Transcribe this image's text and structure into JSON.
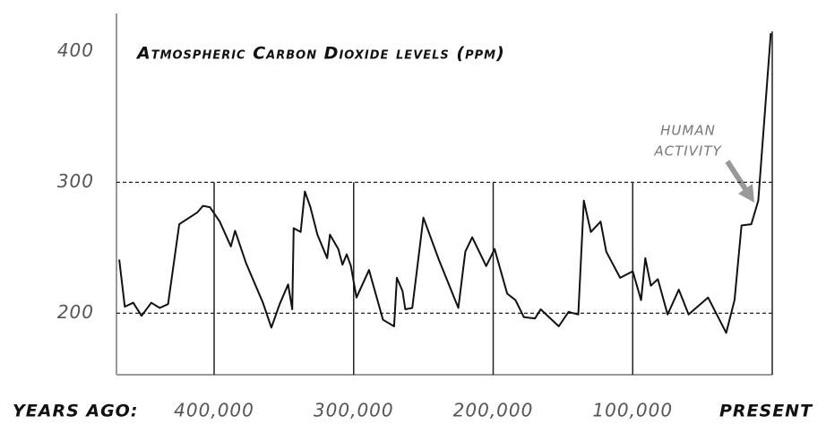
{
  "chart_data": {
    "type": "line",
    "title": "Atmospheric Carbon Dioxide levels (ppm)",
    "x_label": "YEARS AGO:",
    "annotation": {
      "lines": [
        "HUMAN",
        "ACTIVITY"
      ]
    },
    "x": [
      468000,
      464000,
      458000,
      452000,
      445000,
      439000,
      433000,
      425000,
      412000,
      408000,
      403000,
      396000,
      388000,
      385000,
      377000,
      365000,
      359000,
      353000,
      347000,
      344000,
      343000,
      338000,
      335000,
      331000,
      326000,
      319000,
      317000,
      311000,
      308000,
      305000,
      302000,
      298000,
      289000,
      279000,
      271000,
      269000,
      265000,
      263000,
      258000,
      250000,
      239000,
      225000,
      220000,
      215000,
      205000,
      199000,
      190000,
      184000,
      178000,
      170000,
      166000,
      153000,
      146000,
      139000,
      135000,
      130000,
      123000,
      119000,
      109000,
      100000,
      94000,
      91000,
      87000,
      82000,
      75000,
      67000,
      60000,
      46000,
      33000,
      27000,
      22000,
      15000,
      10000,
      1000
    ],
    "series": [
      {
        "name": "CO2",
        "color": "#111111",
        "values": [
          241,
          205,
          208,
          198,
          208,
          204,
          207,
          268,
          277,
          282,
          281,
          270,
          251,
          263,
          238,
          208,
          189,
          207,
          222,
          203,
          265,
          262,
          293,
          281,
          260,
          242,
          260,
          249,
          237,
          245,
          236,
          212,
          233,
          195,
          190,
          227,
          217,
          203,
          204,
          273,
          241,
          204,
          247,
          258,
          236,
          249,
          215,
          210,
          197,
          196,
          203,
          190,
          201,
          199,
          286,
          262,
          270,
          247,
          227,
          232,
          210,
          242,
          221,
          226,
          199,
          218,
          199,
          212,
          185,
          210,
          267,
          268,
          286,
          414
        ]
      }
    ],
    "xlim": [
      470000,
      0
    ],
    "xticks": [
      {
        "value": 400000,
        "label": "400,000"
      },
      {
        "value": 300000,
        "label": "300,000"
      },
      {
        "value": 200000,
        "label": "200,000"
      },
      {
        "value": 100000,
        "label": "100,000"
      },
      {
        "value": 0,
        "label": "PRESENT"
      }
    ],
    "ylim": [
      153,
      429
    ],
    "yticks": [
      200,
      300,
      400
    ],
    "dashed_lines": [
      200,
      300
    ]
  }
}
